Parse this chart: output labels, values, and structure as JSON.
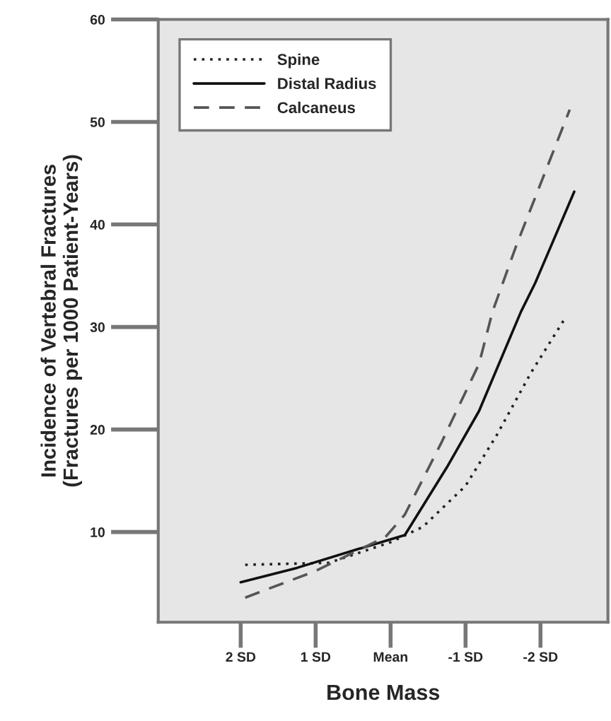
{
  "chart_data": {
    "type": "line",
    "xlabel": "Bone Mass",
    "ylabel": "Incidence of Vertebral Fractures\n(Fractures per 1000 Patient-Years)",
    "xlim": [
      3.1,
      -2.9
    ],
    "ylim": [
      1.2,
      60
    ],
    "xticks": [
      {
        "value": 2,
        "label": "2 SD"
      },
      {
        "value": 1,
        "label": "1 SD"
      },
      {
        "value": 0,
        "label": "Mean"
      },
      {
        "value": -1,
        "label": "-1 SD"
      },
      {
        "value": -2,
        "label": "-2 SD"
      }
    ],
    "yticks": [
      10,
      20,
      30,
      40,
      50,
      60
    ],
    "legend": "top left",
    "grid": false,
    "marker": "none",
    "series": [
      {
        "name": "Spine",
        "color": "#222222",
        "line_style": "dotted",
        "x": [
          1.94,
          0.82,
          0,
          -0.43,
          -1.0,
          -1.42,
          -1.87,
          -2.34
        ],
        "values": [
          6.8,
          7.0,
          9.0,
          10.5,
          14.5,
          19.5,
          25.5,
          31
        ]
      },
      {
        "name": "Distal Radius",
        "color": "#111111",
        "line_style": "solid",
        "x": [
          2.0,
          1.25,
          0.45,
          -0.19,
          -0.75,
          -1.18,
          -1.74,
          -1.93,
          -2.45
        ],
        "values": [
          5.1,
          6.5,
          8.3,
          9.7,
          16.3,
          21.8,
          31.5,
          34.3,
          43.2
        ]
      },
      {
        "name": "Calcaneus",
        "color": "#555555",
        "line_style": "dashed",
        "x": [
          1.94,
          1.0,
          0.07,
          -0.19,
          -0.67,
          -1.18,
          -1.36,
          -1.68,
          -2.39
        ],
        "values": [
          3.6,
          6.2,
          9.5,
          11.7,
          18.6,
          26.4,
          31.5,
          38,
          51.2
        ]
      }
    ]
  }
}
